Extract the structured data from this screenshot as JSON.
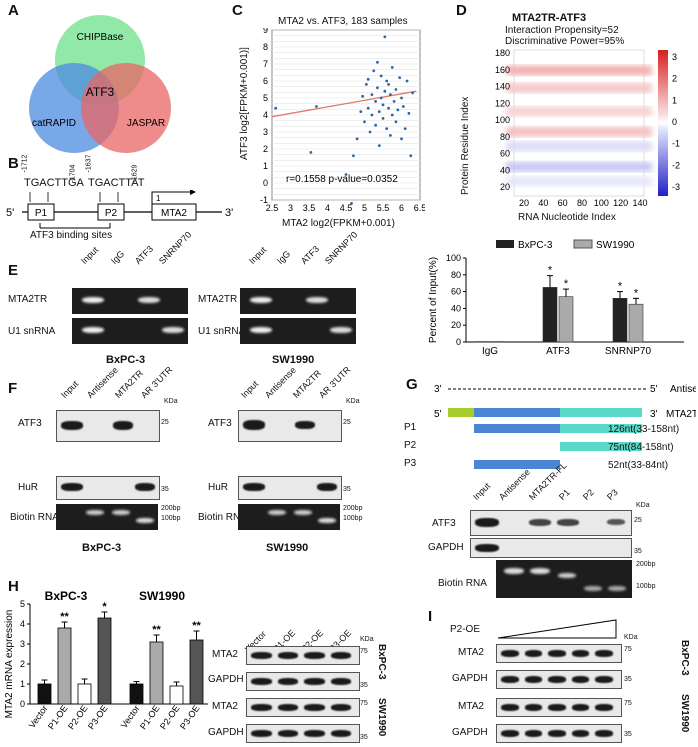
{
  "panels": {
    "A": "A",
    "B": "B",
    "C": "C",
    "D": "D",
    "E": "E",
    "F": "F",
    "G": "G",
    "H": "H",
    "I": "I"
  },
  "venn": {
    "chipbase": "CHIPBase",
    "catrapid": "catRAPID",
    "jaspar": "JASPAR",
    "center": "ATF3",
    "colors": {
      "chipbase": "#6ee08a",
      "catrapid": "#4b8be0",
      "jaspar": "#e86565"
    }
  },
  "promoter": {
    "seq1": "TGACTTGA",
    "seq2": "TGACTTAT",
    "pos1": "-1712",
    "pos2": "-1704",
    "pos3": "-1637",
    "pos4": "-1629",
    "p1": "P1",
    "p2": "P2",
    "gene": "MTA2",
    "five": "5'",
    "three": "3'",
    "tss": "1",
    "sites": "ATF3 binding sites"
  },
  "scatter": {
    "title": "MTA2 vs. ATF3, 183 samples",
    "xlabel": "MTA2 log2(FPKM+0.001)",
    "ylabel": "ATF3 log2[FPKM+0.001)]",
    "stats": "r=0.1558  p-value=0.0352"
  },
  "chart_data": {
    "type": "scatter",
    "title": "MTA2 vs. ATF3, 183 samples",
    "xlabel": "MTA2 log2(FPKM+0.001)",
    "ylabel": "ATF3 log2[FPKM+0.001)]",
    "xlim": [
      2.5,
      6.5
    ],
    "ylim": [
      -1,
      9
    ],
    "xticks": [
      "2.5",
      "3",
      "3.5",
      "4",
      "4.5",
      "5",
      "5.5",
      "6",
      "6.5"
    ],
    "yticks": [
      "-1",
      "0",
      "1",
      "2",
      "3",
      "4",
      "5",
      "6",
      "7",
      "8",
      "9"
    ],
    "regression": {
      "x": [
        2.5,
        6.4
      ],
      "y": [
        3.9,
        5.4
      ]
    },
    "points": [
      [
        2.6,
        4.4
      ],
      [
        3.55,
        1.8
      ],
      [
        3.7,
        4.5
      ],
      [
        4.5,
        0.5
      ],
      [
        4.65,
        -1.2
      ],
      [
        4.7,
        1.6
      ],
      [
        4.8,
        2.6
      ],
      [
        4.9,
        4.2
      ],
      [
        4.95,
        5.1
      ],
      [
        5.0,
        3.6
      ],
      [
        5.05,
        5.8
      ],
      [
        5.1,
        4.4
      ],
      [
        5.1,
        6.1
      ],
      [
        5.15,
        3.0
      ],
      [
        5.2,
        5.2
      ],
      [
        5.2,
        4.0
      ],
      [
        5.25,
        6.6
      ],
      [
        5.3,
        4.8
      ],
      [
        5.3,
        3.4
      ],
      [
        5.35,
        5.6
      ],
      [
        5.35,
        7.1
      ],
      [
        5.4,
        4.2
      ],
      [
        5.4,
        2.2
      ],
      [
        5.45,
        5.0
      ],
      [
        5.45,
        6.3
      ],
      [
        5.5,
        3.8
      ],
      [
        5.5,
        4.6
      ],
      [
        5.55,
        5.4
      ],
      [
        5.55,
        8.6
      ],
      [
        5.6,
        3.2
      ],
      [
        5.6,
        6.0
      ],
      [
        5.65,
        4.4
      ],
      [
        5.65,
        5.8
      ],
      [
        5.7,
        2.8
      ],
      [
        5.7,
        5.2
      ],
      [
        5.75,
        4.0
      ],
      [
        5.75,
        6.8
      ],
      [
        5.8,
        4.8
      ],
      [
        5.85,
        3.6
      ],
      [
        5.85,
        5.5
      ],
      [
        5.9,
        4.3
      ],
      [
        5.95,
        6.2
      ],
      [
        6.0,
        2.6
      ],
      [
        6.0,
        5.0
      ],
      [
        6.05,
        4.5
      ],
      [
        6.1,
        3.2
      ],
      [
        6.15,
        6.0
      ],
      [
        6.2,
        4.1
      ],
      [
        6.25,
        1.6
      ],
      [
        6.3,
        5.3
      ]
    ]
  },
  "heatmap": {
    "title": "MTA2TR-ATF3",
    "line1": "Interaction Propensity=52",
    "line2": "Discriminative Power=95%",
    "ylabel": "Protein Residue Index",
    "xlabel": "RNA Nucleotide Index",
    "xticks": [
      "20",
      "40",
      "60",
      "80",
      "100",
      "120",
      "140"
    ],
    "yticks": [
      "180",
      "160",
      "140",
      "120",
      "100",
      "80",
      "60",
      "40",
      "20"
    ],
    "cbar": [
      "3",
      "2",
      "1",
      "0",
      "-1",
      "-2",
      "-3"
    ]
  },
  "ripE": {
    "lanes": [
      "Input",
      "IgG",
      "ATF3",
      "SNRNP70"
    ],
    "rows": [
      "MTA2TR",
      "U1 snRNA"
    ],
    "cell1": "BxPC-3",
    "cell2": "SW1990"
  },
  "barE": {
    "ylabel": "Percent of Input(%)",
    "legend": [
      "BxPC-3",
      "SW1990"
    ],
    "groups": [
      "IgG",
      "ATF3",
      "SNRNP70"
    ],
    "yticks": [
      "100",
      "80",
      "60",
      "40",
      "20",
      "0"
    ],
    "star": "*"
  },
  "bar_chart": {
    "type": "bar",
    "categories": [
      "IgG",
      "ATF3",
      "SNRNP70"
    ],
    "series": [
      {
        "name": "BxPC-3",
        "values": [
          0.5,
          65,
          52
        ]
      },
      {
        "name": "SW1990",
        "values": [
          0.5,
          54,
          45
        ]
      }
    ],
    "ylim": [
      0,
      100
    ]
  },
  "pullF": {
    "lanes": [
      "Input",
      "Antisense",
      "MTA2TR",
      "AR 3'UTR"
    ],
    "rows": [
      "ATF3",
      "HuR",
      "Biotin RNA"
    ],
    "kda": "KDa",
    "m25": "25",
    "m35": "35",
    "m200": "200bp",
    "m100": "100bp",
    "cell1": "BxPC-3",
    "cell2": "SW1990"
  },
  "constructsG": {
    "antisense": "Antisense",
    "fl": "MTA2TR-FL",
    "p1": "P1",
    "p2": "P2",
    "p3": "P3",
    "p1len": "126nt(33-158nt)",
    "p2len": "75nt(84-158nt)",
    "p3len": "52nt(33-84nt)",
    "three": "3'",
    "five": "5'",
    "lanes": [
      "Input",
      "Antisense",
      "MTA2TR-FL",
      "P1",
      "P2",
      "P3"
    ],
    "rows": [
      "ATF3",
      "GAPDH",
      "Biotin RNA"
    ],
    "kda": "KDa",
    "m25": "25",
    "m35": "35",
    "m200": "200bp",
    "m100": "100bp"
  },
  "barH": {
    "ylabel": "MTA2 mRNA expression",
    "cell1": "BxPC-3",
    "cell2": "SW1990",
    "groups": [
      "Vector",
      "P1-OE",
      "P2-OE",
      "P3-OE"
    ],
    "yticks": [
      "5",
      "4",
      "3",
      "2",
      "1",
      "0"
    ],
    "sig1": "**",
    "sig2": "*",
    "sig3": "**",
    "sig4": "**"
  },
  "barH_data": {
    "type": "bar",
    "categories": [
      "Vector",
      "P1-OE",
      "P2-OE",
      "P3-OE"
    ],
    "series": [
      {
        "name": "BxPC-3",
        "values": [
          1.0,
          3.8,
          1.0,
          4.3
        ]
      },
      {
        "name": "SW1990",
        "values": [
          1.0,
          3.1,
          0.9,
          3.2
        ]
      }
    ],
    "ylim": [
      0,
      5
    ]
  },
  "wbH": {
    "lanes": [
      "Vector",
      "P1-OE",
      "P2-OE",
      "P3-OE"
    ],
    "rows": [
      "MTA2",
      "GAPDH",
      "MTA2",
      "GAPDH"
    ],
    "kda": "KDa",
    "m75": "75",
    "m35": "35",
    "cell1": "BxPC-3",
    "cell2": "SW1990"
  },
  "wbI": {
    "label": "P2-OE",
    "rows": [
      "MTA2",
      "GAPDH",
      "MTA2",
      "GAPDH"
    ],
    "kda": "KDa",
    "m75": "75",
    "m35": "35",
    "cell1": "BxPC-3",
    "cell2": "SW1990"
  }
}
